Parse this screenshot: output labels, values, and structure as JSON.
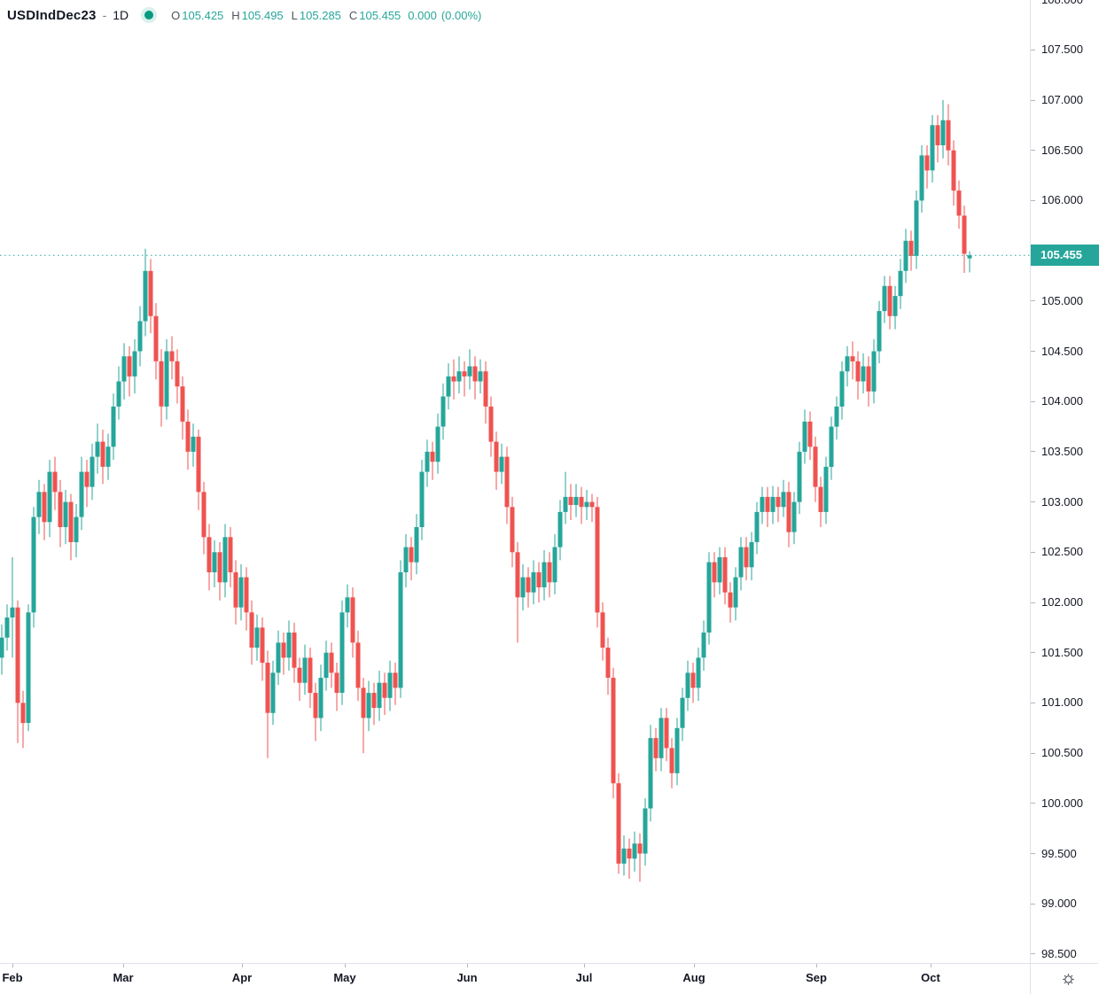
{
  "header": {
    "symbol": "USDIndDec23",
    "separator": "-",
    "interval": "1D",
    "ohlc": [
      {
        "k": "O",
        "v": "105.425"
      },
      {
        "k": "H",
        "v": "105.495"
      },
      {
        "k": "L",
        "v": "105.285"
      },
      {
        "k": "C",
        "v": "105.455"
      }
    ],
    "change": "0.000",
    "change_pct": "(0.00%)"
  },
  "colors": {
    "up": "#26a69a",
    "down": "#ef5350",
    "current_line": "#26a69a",
    "current_label_bg": "#26a69a",
    "text": "#131722",
    "muted": "#787b86",
    "axis_line": "#e0e3eb",
    "tick": "#b2b5be"
  },
  "price_axis": {
    "labels": [
      "108.000",
      "107.500",
      "107.000",
      "106.500",
      "106.000",
      "105.000",
      "104.500",
      "104.000",
      "103.500",
      "103.000",
      "102.500",
      "102.000",
      "101.500",
      "101.000",
      "100.500",
      "100.000",
      "99.500",
      "99.000",
      "98.500"
    ],
    "current": {
      "text": "105.455",
      "price": 105.455
    }
  },
  "time_axis": {
    "months": [
      {
        "label": "Feb",
        "x": 14
      },
      {
        "label": "Mar",
        "x": 139
      },
      {
        "label": "Apr",
        "x": 273
      },
      {
        "label": "May",
        "x": 389
      },
      {
        "label": "Jun",
        "x": 527
      },
      {
        "label": "Jul",
        "x": 659
      },
      {
        "label": "Aug",
        "x": 783
      },
      {
        "label": "Sep",
        "x": 921
      },
      {
        "label": "Oct",
        "x": 1050
      }
    ]
  },
  "chart_data": {
    "type": "candlestick",
    "title": "USDIndDec23 daily candlestick chart",
    "symbol": "USDIndDec23",
    "interval": "1D",
    "legend_position": "top-left",
    "grid": false,
    "price_axis_side": "right",
    "ylim": [
      98.4,
      108.0
    ],
    "current_price": 105.455,
    "months": [
      "Feb",
      "Mar",
      "Apr",
      "May",
      "Jun",
      "Jul",
      "Aug",
      "Sep",
      "Oct"
    ],
    "candles_format": [
      "open",
      "high",
      "low",
      "close"
    ],
    "candles": [
      [
        101.45,
        101.78,
        101.28,
        101.65
      ],
      [
        101.65,
        101.98,
        101.52,
        101.85
      ],
      [
        101.85,
        102.45,
        101.45,
        101.95
      ],
      [
        101.95,
        102.02,
        100.6,
        101.0
      ],
      [
        101.0,
        101.12,
        100.55,
        100.8
      ],
      [
        100.8,
        101.98,
        100.72,
        101.9
      ],
      [
        101.9,
        102.95,
        101.75,
        102.85
      ],
      [
        102.85,
        103.22,
        102.68,
        103.1
      ],
      [
        103.1,
        103.18,
        102.62,
        102.8
      ],
      [
        102.8,
        103.42,
        102.65,
        103.3
      ],
      [
        103.3,
        103.45,
        102.92,
        103.1
      ],
      [
        103.1,
        103.22,
        102.55,
        102.75
      ],
      [
        102.75,
        103.12,
        102.58,
        103.0
      ],
      [
        103.0,
        103.08,
        102.42,
        102.6
      ],
      [
        102.6,
        102.98,
        102.45,
        102.85
      ],
      [
        102.85,
        103.45,
        102.72,
        103.3
      ],
      [
        103.3,
        103.42,
        102.95,
        103.15
      ],
      [
        103.15,
        103.58,
        103.02,
        103.45
      ],
      [
        103.45,
        103.78,
        103.28,
        103.6
      ],
      [
        103.6,
        103.72,
        103.18,
        103.35
      ],
      [
        103.35,
        103.68,
        103.22,
        103.55
      ],
      [
        103.55,
        104.08,
        103.42,
        103.95
      ],
      [
        103.95,
        104.35,
        103.82,
        104.2
      ],
      [
        104.2,
        104.58,
        104.02,
        104.45
      ],
      [
        104.45,
        104.55,
        104.05,
        104.25
      ],
      [
        104.25,
        104.62,
        104.08,
        104.5
      ],
      [
        104.5,
        104.95,
        104.35,
        104.8
      ],
      [
        104.8,
        105.52,
        104.65,
        105.3
      ],
      [
        105.3,
        105.42,
        104.68,
        104.85
      ],
      [
        104.85,
        104.98,
        104.22,
        104.4
      ],
      [
        104.4,
        104.52,
        103.75,
        103.95
      ],
      [
        103.95,
        104.62,
        103.82,
        104.5
      ],
      [
        104.5,
        104.65,
        104.22,
        104.4
      ],
      [
        104.4,
        104.52,
        103.98,
        104.15
      ],
      [
        104.15,
        104.25,
        103.62,
        103.8
      ],
      [
        103.8,
        103.92,
        103.32,
        103.5
      ],
      [
        103.5,
        103.78,
        103.35,
        103.65
      ],
      [
        103.65,
        103.72,
        102.92,
        103.1
      ],
      [
        103.1,
        103.2,
        102.48,
        102.65
      ],
      [
        102.65,
        102.78,
        102.12,
        102.3
      ],
      [
        102.3,
        102.62,
        102.15,
        102.5
      ],
      [
        102.5,
        102.6,
        102.02,
        102.2
      ],
      [
        102.2,
        102.78,
        102.05,
        102.65
      ],
      [
        102.65,
        102.75,
        102.15,
        102.3
      ],
      [
        102.3,
        102.42,
        101.78,
        101.95
      ],
      [
        101.95,
        102.38,
        101.82,
        102.25
      ],
      [
        102.25,
        102.35,
        101.72,
        101.9
      ],
      [
        101.9,
        102.02,
        101.38,
        101.55
      ],
      [
        101.55,
        101.88,
        101.42,
        101.75
      ],
      [
        101.75,
        101.85,
        101.22,
        101.4
      ],
      [
        101.4,
        101.52,
        100.45,
        100.9
      ],
      [
        100.9,
        101.42,
        100.78,
        101.3
      ],
      [
        101.3,
        101.72,
        101.18,
        101.6
      ],
      [
        101.6,
        101.7,
        101.28,
        101.45
      ],
      [
        101.45,
        101.82,
        101.32,
        101.7
      ],
      [
        101.7,
        101.8,
        101.2,
        101.35
      ],
      [
        101.35,
        101.45,
        101.02,
        101.2
      ],
      [
        101.2,
        101.58,
        101.08,
        101.45
      ],
      [
        101.45,
        101.55,
        100.95,
        101.1
      ],
      [
        101.1,
        101.2,
        100.62,
        100.85
      ],
      [
        100.85,
        101.38,
        100.72,
        101.25
      ],
      [
        101.25,
        101.62,
        101.12,
        101.5
      ],
      [
        101.5,
        101.6,
        101.15,
        101.3
      ],
      [
        101.3,
        101.4,
        100.92,
        101.1
      ],
      [
        101.1,
        102.02,
        100.98,
        101.9
      ],
      [
        101.9,
        102.18,
        101.75,
        102.05
      ],
      [
        102.05,
        102.15,
        101.45,
        101.6
      ],
      [
        101.6,
        101.72,
        101.02,
        101.15
      ],
      [
        101.15,
        101.25,
        100.5,
        100.85
      ],
      [
        100.85,
        101.22,
        100.72,
        101.1
      ],
      [
        101.1,
        101.2,
        100.78,
        100.95
      ],
      [
        100.95,
        101.32,
        100.82,
        101.2
      ],
      [
        101.2,
        101.3,
        100.88,
        101.05
      ],
      [
        101.05,
        101.42,
        100.92,
        101.3
      ],
      [
        101.3,
        101.4,
        100.98,
        101.15
      ],
      [
        101.15,
        102.42,
        101.05,
        102.3
      ],
      [
        102.3,
        102.68,
        102.15,
        102.55
      ],
      [
        102.55,
        102.65,
        102.22,
        102.4
      ],
      [
        102.4,
        102.88,
        102.28,
        102.75
      ],
      [
        102.75,
        103.42,
        102.62,
        103.3
      ],
      [
        103.3,
        103.62,
        103.15,
        103.5
      ],
      [
        103.5,
        103.6,
        103.22,
        103.4
      ],
      [
        103.4,
        103.88,
        103.28,
        103.75
      ],
      [
        103.75,
        104.18,
        103.62,
        104.05
      ],
      [
        104.05,
        104.38,
        103.92,
        104.25
      ],
      [
        104.25,
        104.42,
        104.02,
        104.2
      ],
      [
        104.2,
        104.45,
        104.08,
        104.3
      ],
      [
        104.3,
        104.4,
        104.05,
        104.25
      ],
      [
        104.25,
        104.52,
        104.12,
        104.35
      ],
      [
        104.35,
        104.45,
        104.02,
        104.2
      ],
      [
        104.2,
        104.42,
        104.08,
        104.3
      ],
      [
        104.3,
        104.4,
        103.78,
        103.95
      ],
      [
        103.95,
        104.05,
        103.45,
        103.6
      ],
      [
        103.6,
        103.7,
        103.12,
        103.3
      ],
      [
        103.3,
        103.58,
        103.18,
        103.45
      ],
      [
        103.45,
        103.55,
        102.78,
        102.95
      ],
      [
        102.95,
        103.05,
        102.35,
        102.5
      ],
      [
        102.5,
        102.6,
        101.6,
        102.05
      ],
      [
        102.05,
        102.38,
        101.92,
        102.25
      ],
      [
        102.25,
        102.35,
        101.95,
        102.1
      ],
      [
        102.1,
        102.42,
        101.98,
        102.3
      ],
      [
        102.3,
        102.4,
        102.0,
        102.15
      ],
      [
        102.15,
        102.52,
        102.02,
        102.4
      ],
      [
        102.4,
        102.5,
        102.05,
        102.2
      ],
      [
        102.2,
        102.68,
        102.08,
        102.55
      ],
      [
        102.55,
        103.02,
        102.42,
        102.9
      ],
      [
        102.9,
        103.3,
        102.78,
        103.05
      ],
      [
        103.05,
        103.18,
        102.82,
        102.97
      ],
      [
        102.97,
        103.18,
        102.85,
        103.05
      ],
      [
        103.05,
        103.15,
        102.78,
        102.95
      ],
      [
        102.95,
        103.12,
        102.82,
        103.0
      ],
      [
        103.0,
        103.08,
        102.8,
        102.95
      ],
      [
        102.95,
        103.05,
        101.75,
        101.9
      ],
      [
        101.9,
        102.0,
        101.42,
        101.55
      ],
      [
        101.55,
        101.65,
        101.08,
        101.25
      ],
      [
        101.25,
        101.35,
        100.05,
        100.2
      ],
      [
        100.2,
        100.3,
        99.3,
        99.4
      ],
      [
        99.4,
        99.68,
        99.28,
        99.55
      ],
      [
        99.55,
        99.65,
        99.25,
        99.45
      ],
      [
        99.45,
        99.72,
        99.32,
        99.6
      ],
      [
        99.6,
        99.7,
        99.22,
        99.5
      ],
      [
        99.5,
        100.05,
        99.38,
        99.95
      ],
      [
        99.95,
        100.78,
        99.82,
        100.65
      ],
      [
        100.65,
        100.75,
        100.32,
        100.45
      ],
      [
        100.45,
        100.95,
        100.32,
        100.85
      ],
      [
        100.85,
        100.95,
        100.42,
        100.55
      ],
      [
        100.55,
        100.65,
        100.15,
        100.3
      ],
      [
        100.3,
        100.85,
        100.18,
        100.75
      ],
      [
        100.75,
        101.15,
        100.62,
        101.05
      ],
      [
        101.05,
        101.42,
        100.92,
        101.3
      ],
      [
        101.3,
        101.4,
        101.0,
        101.15
      ],
      [
        101.15,
        101.55,
        101.02,
        101.45
      ],
      [
        101.45,
        101.82,
        101.32,
        101.7
      ],
      [
        101.7,
        102.5,
        101.58,
        102.4
      ],
      [
        102.4,
        102.5,
        102.05,
        102.2
      ],
      [
        102.2,
        102.55,
        102.08,
        102.45
      ],
      [
        102.45,
        102.55,
        101.98,
        102.1
      ],
      [
        102.1,
        102.2,
        101.8,
        101.95
      ],
      [
        101.95,
        102.35,
        101.82,
        102.25
      ],
      [
        102.25,
        102.65,
        102.12,
        102.55
      ],
      [
        102.55,
        102.65,
        102.22,
        102.35
      ],
      [
        102.35,
        102.7,
        102.22,
        102.6
      ],
      [
        102.6,
        103.0,
        102.48,
        102.9
      ],
      [
        102.9,
        103.15,
        102.78,
        103.05
      ],
      [
        103.05,
        103.15,
        102.75,
        102.9
      ],
      [
        102.9,
        103.16,
        102.78,
        103.05
      ],
      [
        103.05,
        103.15,
        102.8,
        102.95
      ],
      [
        102.95,
        103.22,
        102.85,
        103.1
      ],
      [
        103.1,
        103.2,
        102.55,
        102.7
      ],
      [
        102.7,
        103.1,
        102.58,
        103.0
      ],
      [
        103.0,
        103.6,
        102.88,
        103.5
      ],
      [
        103.5,
        103.92,
        103.38,
        103.8
      ],
      [
        103.8,
        103.9,
        103.42,
        103.55
      ],
      [
        103.55,
        103.65,
        103.0,
        103.15
      ],
      [
        103.15,
        103.25,
        102.75,
        102.9
      ],
      [
        102.9,
        103.45,
        102.78,
        103.35
      ],
      [
        103.35,
        103.85,
        103.22,
        103.75
      ],
      [
        103.75,
        104.05,
        103.62,
        103.95
      ],
      [
        103.95,
        104.4,
        103.82,
        104.3
      ],
      [
        104.3,
        104.55,
        104.15,
        104.45
      ],
      [
        104.45,
        104.6,
        104.22,
        104.4
      ],
      [
        104.4,
        104.5,
        104.02,
        104.2
      ],
      [
        104.2,
        104.48,
        104.08,
        104.35
      ],
      [
        104.35,
        104.45,
        103.95,
        104.1
      ],
      [
        104.1,
        104.62,
        103.98,
        104.5
      ],
      [
        104.5,
        105.0,
        104.38,
        104.9
      ],
      [
        104.9,
        105.25,
        104.78,
        105.15
      ],
      [
        105.15,
        105.25,
        104.72,
        104.85
      ],
      [
        104.85,
        105.15,
        104.72,
        105.05
      ],
      [
        105.05,
        105.42,
        104.92,
        105.3
      ],
      [
        105.3,
        105.72,
        105.18,
        105.6
      ],
      [
        105.6,
        105.7,
        105.3,
        105.45
      ],
      [
        105.45,
        106.1,
        105.32,
        106.0
      ],
      [
        106.0,
        106.55,
        105.88,
        106.45
      ],
      [
        106.45,
        106.55,
        106.12,
        106.3
      ],
      [
        106.3,
        106.85,
        106.18,
        106.75
      ],
      [
        106.75,
        106.85,
        106.38,
        106.55
      ],
      [
        106.55,
        107.0,
        106.42,
        106.8
      ],
      [
        106.8,
        106.96,
        106.35,
        106.5
      ],
      [
        106.5,
        106.6,
        105.95,
        106.1
      ],
      [
        106.1,
        106.2,
        105.72,
        105.85
      ],
      [
        105.85,
        105.95,
        105.28,
        105.47
      ],
      [
        105.425,
        105.495,
        105.285,
        105.455
      ]
    ]
  }
}
